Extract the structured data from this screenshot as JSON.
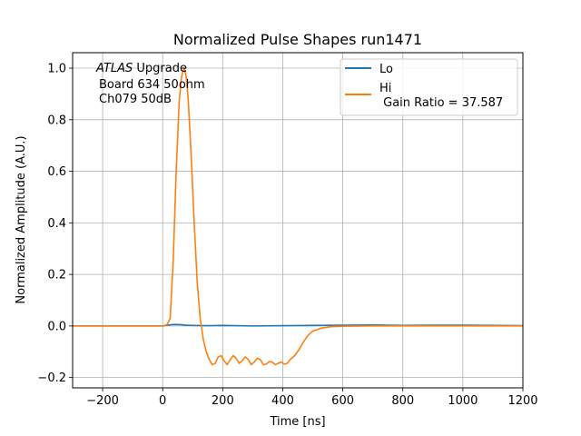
{
  "chart_data": {
    "type": "line",
    "title": "Normalized Pulse Shapes run1471",
    "xlabel": "Time [ns]",
    "ylabel": "Normalized Amplitude (A.U.)",
    "xlim": [
      -300,
      1200
    ],
    "ylim": [
      -0.24,
      1.06
    ],
    "xticks": [
      -200,
      0,
      200,
      400,
      600,
      800,
      1000,
      1200
    ],
    "yticks": [
      -0.2,
      0.0,
      0.2,
      0.4,
      0.6,
      0.8,
      1.0
    ],
    "xtick_labels": [
      "−200",
      "0",
      "200",
      "400",
      "600",
      "800",
      "1000",
      "1200"
    ],
    "ytick_labels": [
      "−0.2",
      "0.0",
      "0.2",
      "0.4",
      "0.6",
      "0.8",
      "1.0"
    ],
    "grid": true,
    "legend_position": "top-right",
    "annotation": {
      "line1_italic": "ATLAS",
      "line1_rest": " Upgrade",
      "line2": "Board 634 50ohm",
      "line3": "Ch079 50dB"
    },
    "series": [
      {
        "name": "Lo",
        "color": "#1f77b4",
        "x": [
          -300,
          0,
          20,
          40,
          60,
          80,
          100,
          150,
          200,
          300,
          400,
          500,
          600,
          700,
          800,
          900,
          1000,
          1100,
          1200
        ],
        "y": [
          0.0,
          0.0,
          0.004,
          0.006,
          0.005,
          0.003,
          0.002,
          0.001,
          0.002,
          0.0,
          0.001,
          0.002,
          0.003,
          0.004,
          0.002,
          0.003,
          0.003,
          0.002,
          0.001
        ]
      },
      {
        "name": "Hi\n Gain Ratio = 37.587",
        "color": "#ff7f0e",
        "x": [
          -300,
          0,
          15,
          25,
          35,
          45,
          55,
          62,
          68,
          72,
          78,
          85,
          95,
          105,
          115,
          125,
          135,
          145,
          155,
          165,
          175,
          185,
          195,
          205,
          215,
          225,
          235,
          245,
          255,
          265,
          275,
          285,
          295,
          305,
          315,
          325,
          335,
          345,
          355,
          365,
          375,
          385,
          395,
          405,
          415,
          425,
          440,
          455,
          470,
          485,
          500,
          530,
          560,
          600,
          700,
          800,
          900,
          1000,
          1100,
          1200
        ],
        "y": [
          0.0,
          0.0,
          0.005,
          0.03,
          0.25,
          0.6,
          0.87,
          0.96,
          0.99,
          1.0,
          0.97,
          0.88,
          0.66,
          0.4,
          0.17,
          0.03,
          -0.05,
          -0.1,
          -0.13,
          -0.15,
          -0.145,
          -0.12,
          -0.115,
          -0.135,
          -0.15,
          -0.13,
          -0.115,
          -0.125,
          -0.145,
          -0.135,
          -0.12,
          -0.13,
          -0.15,
          -0.14,
          -0.125,
          -0.13,
          -0.15,
          -0.148,
          -0.138,
          -0.14,
          -0.15,
          -0.145,
          -0.14,
          -0.148,
          -0.145,
          -0.13,
          -0.115,
          -0.09,
          -0.06,
          -0.035,
          -0.02,
          -0.008,
          -0.003,
          -0.001,
          0.0,
          0.0,
          0.0,
          0.0,
          0.0,
          0.0
        ]
      }
    ]
  }
}
